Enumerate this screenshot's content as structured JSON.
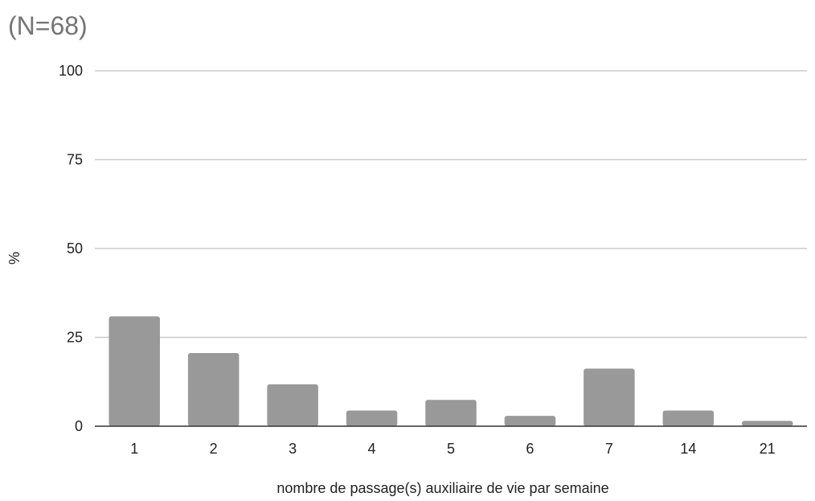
{
  "chart_data": {
    "type": "bar",
    "title": "(N=68)",
    "xlabel": "nombre de passage(s) auxiliaire de vie par semaine",
    "ylabel": "%",
    "categories": [
      "1",
      "2",
      "3",
      "4",
      "5",
      "6",
      "7",
      "14",
      "21"
    ],
    "values": [
      30.9,
      20.6,
      11.8,
      4.4,
      7.4,
      2.9,
      16.2,
      4.4,
      1.5
    ],
    "ylim": [
      0,
      100
    ],
    "yticks": [
      0,
      25,
      50,
      75,
      100
    ],
    "grid": true,
    "legend": "none",
    "colors": {
      "bar": "#999999",
      "grid": "#cccccc",
      "axis": "#333333"
    }
  }
}
